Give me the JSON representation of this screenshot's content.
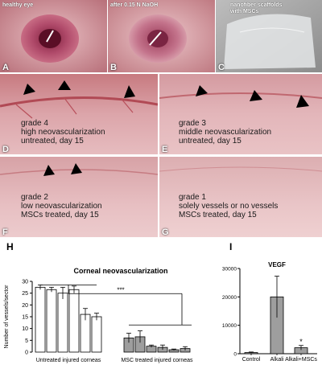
{
  "top_panels": [
    {
      "letter": "A",
      "caption": "healthy eye"
    },
    {
      "letter": "B",
      "caption": "after 0.15 N NaOH"
    },
    {
      "letter": "C",
      "caption_lines": [
        "nanofiber scaffolds",
        "with MSCs"
      ]
    }
  ],
  "grade_panels": [
    {
      "letter": "D",
      "lines": [
        "grade 4",
        "high neovascularization",
        "untreated, day 15"
      ]
    },
    {
      "letter": "E",
      "lines": [
        "grade 3",
        "middle neovascularization",
        "untreated, day 15"
      ]
    },
    {
      "letter": "F",
      "lines": [
        "grade 2",
        "low neovascularization",
        "MSCs treated, day 15"
      ]
    },
    {
      "letter": "G",
      "lines": [
        "grade 1",
        "solely vessels or no vessels",
        "MSCs treated, day 15"
      ]
    }
  ],
  "panel_H": {
    "letter": "H"
  },
  "panel_I": {
    "letter": "I"
  },
  "chart_data": [
    {
      "type": "bar",
      "title": "Corneal neovascularization",
      "ylabel": "Number of vessels/sector",
      "ylim": [
        0,
        30
      ],
      "yticks": [
        0,
        5,
        10,
        15,
        20,
        25,
        30
      ],
      "group_labels": [
        "Untreated injured corneas",
        "MSC treated injured corneas"
      ],
      "significance": "***",
      "series": [
        {
          "values": [
            27.5,
            26.5,
            25.0,
            26.5,
            16.0,
            15.0
          ],
          "errors": [
            1.0,
            1.0,
            2.5,
            1.5,
            2.5,
            1.5
          ]
        },
        {
          "values": [
            6.0,
            6.5,
            2.5,
            2.0,
            1.0,
            1.5
          ],
          "errors": [
            2.0,
            2.5,
            0.5,
            1.0,
            0.3,
            0.8
          ]
        }
      ],
      "colors": {
        "untreated": "#ffffff",
        "treated": "#9e9e9e"
      }
    },
    {
      "type": "bar",
      "title": "VEGF",
      "categories": [
        "Control",
        "Alkali",
        "Alkali+MSCs"
      ],
      "values": [
        400,
        20000,
        2100
      ],
      "errors": [
        200,
        7300,
        800
      ],
      "ylim": [
        0,
        30000
      ],
      "yticks": [
        0,
        10000,
        20000,
        30000
      ],
      "annotation": "*",
      "bar_color": "#9e9e9e"
    }
  ]
}
